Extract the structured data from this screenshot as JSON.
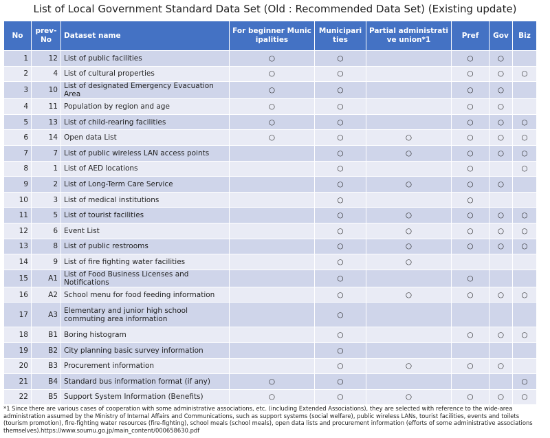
{
  "title": "List of Local Government Standard Data Set (Old : Recommended Data Set) (Existing update)",
  "table": {
    "header": [
      "No",
      "prev-No",
      "Dataset name",
      "For beginner Municipalities",
      "Municiparities",
      "Partial administrative union*1",
      "Pref",
      "Gov",
      "Biz"
    ],
    "rows": [
      [
        1,
        12,
        "List of public facilities",
        "○",
        "○",
        null,
        "○",
        "○",
        null
      ],
      [
        2,
        4,
        "List of cultural properties",
        "○",
        "○",
        null,
        "○",
        "○",
        "○"
      ],
      [
        3,
        10,
        "List of designated Emergency Evacuation Area",
        "○",
        "○",
        null,
        "○",
        "○",
        null
      ],
      [
        4,
        11,
        "Population by region and age",
        "○",
        "○",
        null,
        "○",
        "○",
        null
      ],
      [
        5,
        13,
        "List of child-rearing facilities",
        "○",
        "○",
        null,
        "○",
        "○",
        "○"
      ],
      [
        6,
        14,
        "Open data List",
        "○",
        "○",
        "○",
        "○",
        "○",
        "○"
      ],
      [
        7,
        7,
        "List of public wireless LAN access points",
        null,
        "○",
        "○",
        "○",
        "○",
        "○"
      ],
      [
        8,
        1,
        "List of AED locations",
        null,
        "○",
        null,
        "○",
        null,
        "○"
      ],
      [
        9,
        2,
        "List of Long-Term Care Service",
        null,
        "○",
        "○",
        "○",
        "○",
        null
      ],
      [
        10,
        3,
        "List of medical institutions",
        null,
        "○",
        null,
        "○",
        null,
        null
      ],
      [
        11,
        5,
        "List of tourist facilities",
        null,
        "○",
        "○",
        "○",
        "○",
        "○"
      ],
      [
        12,
        6,
        "Event List",
        null,
        "○",
        "○",
        "○",
        "○",
        "○"
      ],
      [
        13,
        8,
        "List of public restrooms",
        null,
        "○",
        "○",
        "○",
        "○",
        "○"
      ],
      [
        14,
        9,
        "List of fire fighting water facilities",
        null,
        "○",
        "○",
        null,
        null,
        null
      ],
      [
        15,
        "A1",
        "List of Food Business Licenses and Notifications",
        null,
        "○",
        null,
        "○",
        null,
        null
      ],
      [
        16,
        "A2",
        "School menu for food feeding information",
        null,
        "○",
        "○",
        "○",
        "○",
        "○"
      ],
      [
        17,
        "A3",
        "Elementary and junior high school commuting area information",
        null,
        "○",
        null,
        null,
        null,
        null
      ],
      [
        18,
        "B1",
        "Boring histogram",
        null,
        "○",
        null,
        "○",
        "○",
        "○"
      ],
      [
        19,
        "B2",
        "City planning basic survey information",
        null,
        "○",
        null,
        null,
        null,
        null
      ],
      [
        20,
        "B3",
        "Procurement information",
        null,
        "○",
        "○",
        "○",
        "○",
        null
      ],
      [
        21,
        "B4",
        "Standard bus information format (if any)",
        "○",
        "○",
        null,
        null,
        null,
        "○"
      ],
      [
        22,
        "B5",
        "Support System Information (Benefits)",
        "○",
        "○",
        "○",
        "○",
        "○",
        "○"
      ]
    ]
  },
  "footnote": "*1 Since there are various cases of cooperation with some administrative associations, etc. (including Extended Associations), they are selected with reference to the wide-area administration assumed by the Ministry of Internal Affairs and Communications, such as support systems (social welfare), public wireless LANs, tourist facilities, events and toilets (tourism promotion), fire-fighting water resources (fire-fighting), school meals (school meals), open data lists and procurement information (efforts of some administrative associations themselves).https://www.soumu.go.jp/main_content/000658630.pdf"
}
